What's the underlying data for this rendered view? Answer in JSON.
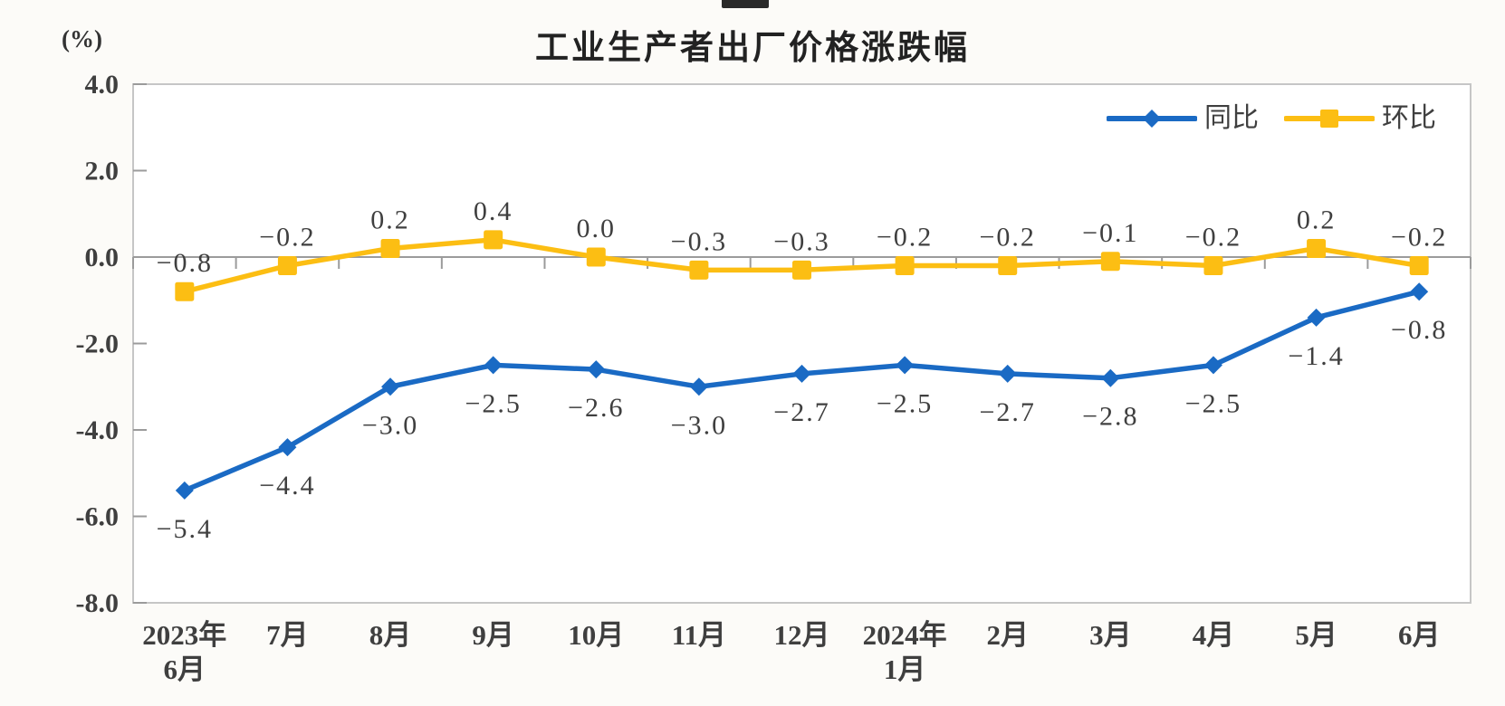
{
  "chart_data": {
    "type": "line",
    "title": "工业生产者出厂价格涨跌幅",
    "ylabel": "(%)",
    "xlabel": "",
    "ylim": [
      -8.0,
      4.0
    ],
    "ytick_values": [
      4.0,
      2.0,
      0.0,
      -2.0,
      -4.0,
      -6.0,
      -8.0
    ],
    "ytick_labels": [
      "4.0",
      "2.0",
      "0.0",
      "-2.0",
      "-4.0",
      "-6.0",
      "-8.0"
    ],
    "grid": false,
    "legend_position": "top-right-inside",
    "categories": [
      "2023年\n6月",
      "7月",
      "8月",
      "9月",
      "10月",
      "11月",
      "12月",
      "2024年\n1月",
      "2月",
      "3月",
      "4月",
      "5月",
      "6月"
    ],
    "series": [
      {
        "name": "同比",
        "color": "#1A6AC4",
        "marker": "diamond",
        "label_side": "below",
        "values": [
          -5.4,
          -4.4,
          -3.0,
          -2.5,
          -2.6,
          -3.0,
          -2.7,
          -2.5,
          -2.7,
          -2.8,
          -2.5,
          -1.4,
          -0.8
        ],
        "labels": [
          "−5.4",
          "−4.4",
          "−3.0",
          "−2.5",
          "−2.6",
          "−3.0",
          "−2.7",
          "−2.5",
          "−2.7",
          "−2.8",
          "−2.5",
          "−1.4",
          "−0.8"
        ]
      },
      {
        "name": "环比",
        "color": "#FCBE13",
        "marker": "square",
        "label_side": "above",
        "values": [
          -0.8,
          -0.2,
          0.2,
          0.4,
          0.0,
          -0.3,
          -0.3,
          -0.2,
          -0.2,
          -0.1,
          -0.2,
          0.2,
          -0.2
        ],
        "labels": [
          "−0.8",
          "−0.2",
          "0.2",
          "0.4",
          "0.0",
          "−0.3",
          "−0.3",
          "−0.2",
          "−0.2",
          "−0.1",
          "−0.2",
          "0.2",
          "−0.2"
        ]
      }
    ]
  }
}
